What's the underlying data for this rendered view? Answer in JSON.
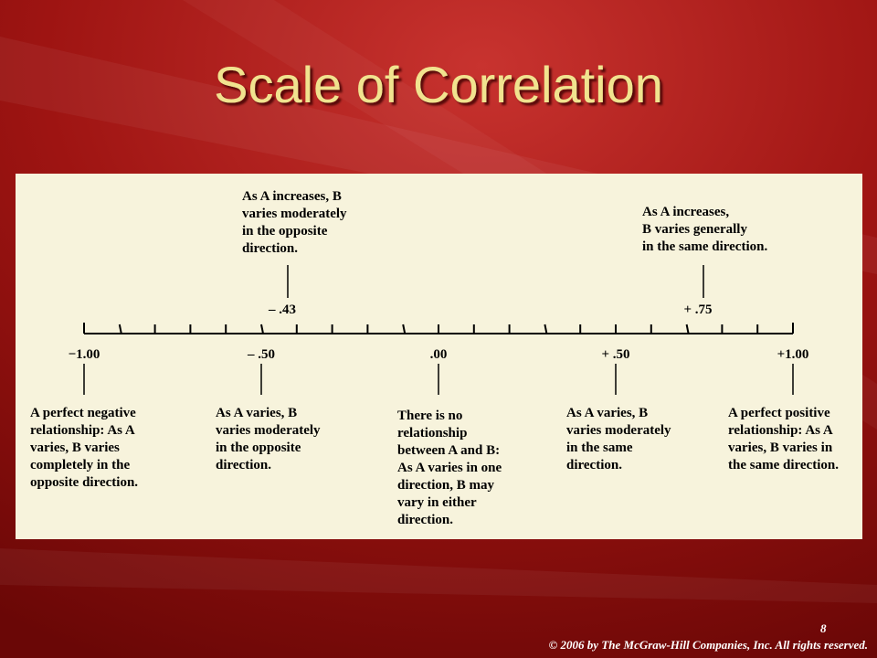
{
  "title": "Scale of Correlation",
  "scale": {
    "labels": [
      "−1.00",
      "– .50",
      ".00",
      "+ .50",
      "+1.00"
    ],
    "markers": [
      "– .43",
      "+ .75"
    ]
  },
  "annotations": {
    "above": [
      {
        "lines": [
          "As A increases, B",
          "varies moderately",
          "in the opposite",
          "direction."
        ]
      },
      {
        "lines": [
          "As A increases,",
          "B varies generally",
          "in the same direction."
        ]
      }
    ],
    "below": [
      {
        "lines": [
          "A perfect negative",
          "relationship: As A",
          "varies, B varies",
          "completely in the",
          "opposite direction."
        ]
      },
      {
        "lines": [
          "As A varies, B",
          "varies moderately",
          "in the opposite",
          "direction."
        ]
      },
      {
        "lines": [
          "There is no",
          "relationship",
          "between A and B:",
          "As A varies in one",
          "direction, B may",
          "vary in either",
          "direction."
        ]
      },
      {
        "lines": [
          "As A varies, B",
          "varies moderately",
          "in the same",
          "direction."
        ]
      },
      {
        "lines": [
          "A perfect positive",
          "relationship: As A",
          "varies, B varies in",
          "the same direction."
        ]
      }
    ]
  },
  "footer": {
    "page": "8",
    "copyright": "© 2006 by The McGraw-Hill Companies, Inc.  All rights reserved."
  }
}
